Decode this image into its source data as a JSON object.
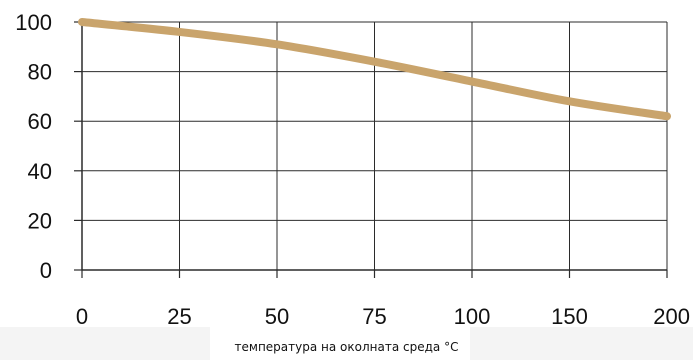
{
  "chart_data": {
    "type": "line",
    "title": "",
    "xlabel": "температура на околната среда °C",
    "ylabel": "",
    "categories": [
      "0",
      "25",
      "50",
      "75",
      "100",
      "150",
      "200"
    ],
    "y_ticks": [
      "0",
      "20",
      "40",
      "60",
      "80",
      "100"
    ],
    "ylim": [
      0,
      100
    ],
    "grid": true,
    "series": [
      {
        "color": "#c9a46c",
        "points": [
          {
            "x": "0",
            "y": 100
          },
          {
            "x": "25",
            "y": 96
          },
          {
            "x": "50",
            "y": 91
          },
          {
            "x": "75",
            "y": 84
          },
          {
            "x": "100",
            "y": 76
          },
          {
            "x": "150",
            "y": 68
          },
          {
            "x": "200",
            "y": 62
          }
        ]
      }
    ]
  }
}
